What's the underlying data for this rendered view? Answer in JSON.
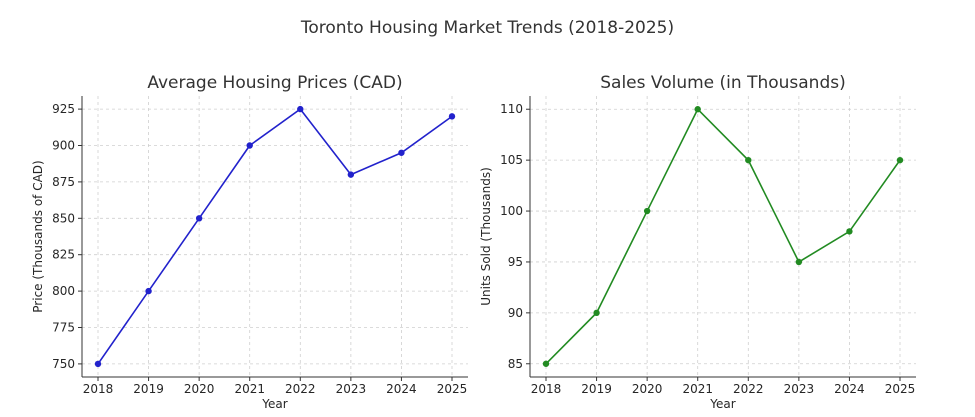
{
  "suptitle": "Toronto Housing Market Trends (2018-2025)",
  "chart_data": [
    {
      "type": "line",
      "title": "Average Housing Prices (CAD)",
      "xlabel": "Year",
      "ylabel": "Price (Thousands of CAD)",
      "x": [
        "2018",
        "2019",
        "2020",
        "2021",
        "2022",
        "2023",
        "2024",
        "2025"
      ],
      "series": [
        {
          "values": [
            750,
            800,
            850,
            900,
            925,
            880,
            895,
            920
          ]
        }
      ],
      "yticks": [
        750,
        775,
        800,
        825,
        850,
        875,
        900,
        925
      ],
      "ylim": [
        741,
        934
      ],
      "grid": true,
      "color": "#2222cc"
    },
    {
      "type": "line",
      "title": "Sales Volume (in Thousands)",
      "xlabel": "Year",
      "ylabel": "Units Sold (Thousands)",
      "x": [
        "2018",
        "2019",
        "2020",
        "2021",
        "2022",
        "2023",
        "2024",
        "2025"
      ],
      "series": [
        {
          "values": [
            85,
            90,
            100,
            110,
            105,
            95,
            98,
            105
          ]
        }
      ],
      "yticks": [
        85,
        90,
        95,
        100,
        105,
        110
      ],
      "ylim": [
        83.7,
        111.3
      ],
      "grid": true,
      "color": "#228b22"
    }
  ]
}
